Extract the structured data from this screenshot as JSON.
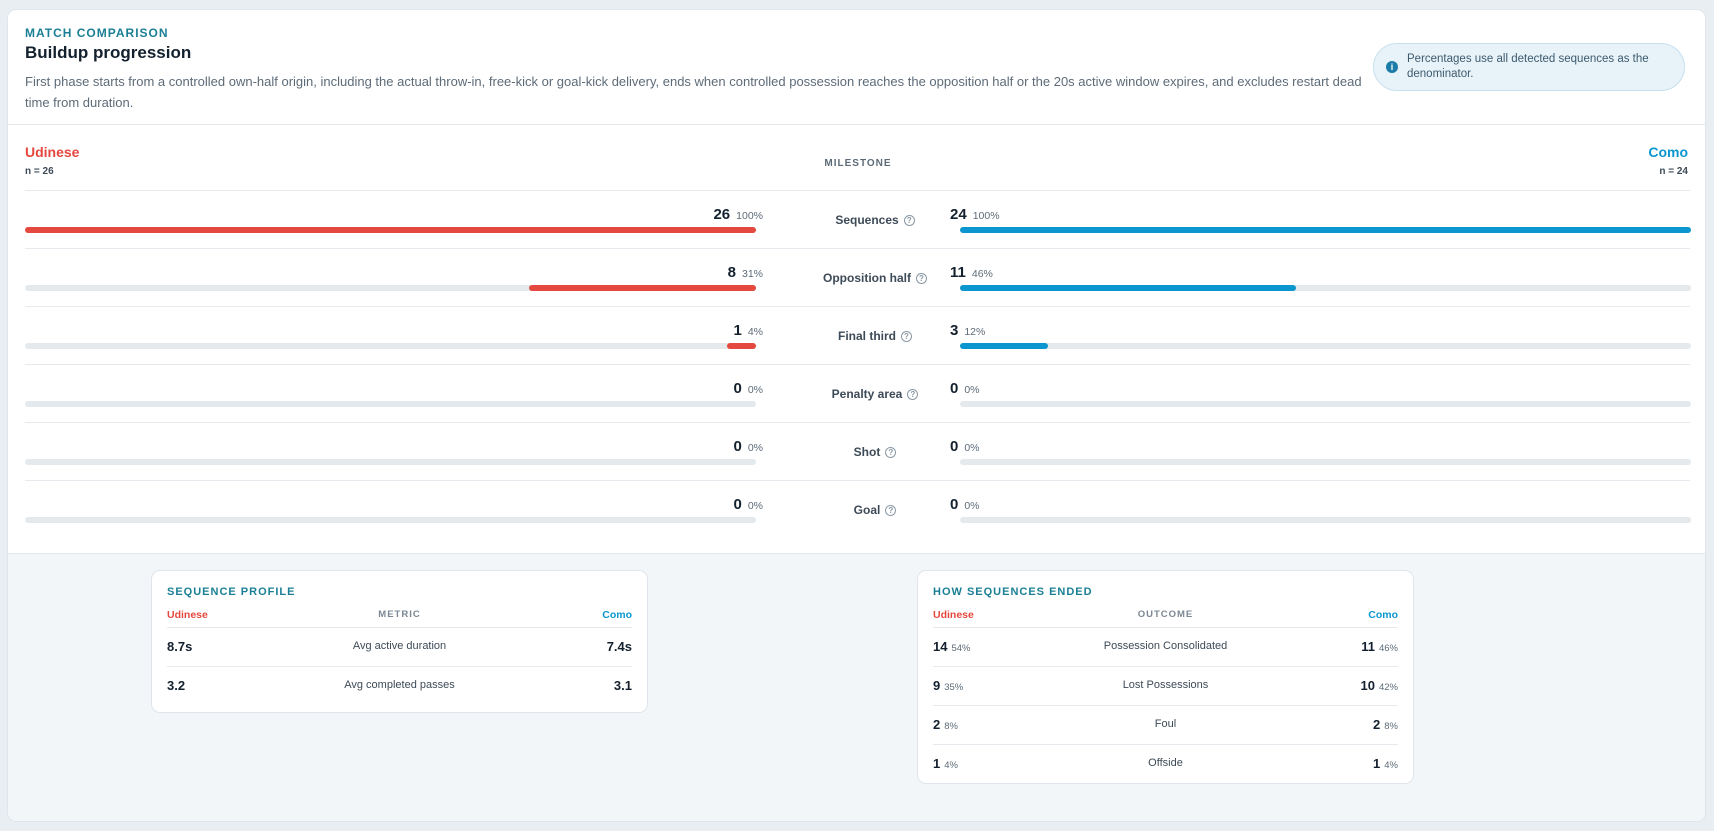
{
  "header": {
    "eyebrow": "MATCH COMPARISON",
    "title": "Buildup progression",
    "description": "First phase starts from a controlled own-half origin, including the actual throw-in, free-kick or goal-kick delivery, ends when controlled possession reaches the opposition half or the 20s active window expires, and excludes restart dead time from duration.",
    "info_icon": "i",
    "info_text": "Percentages use all detected sequences as the denominator."
  },
  "teams": {
    "left": {
      "name": "Udinese",
      "n": "n = 26",
      "color": "#e4483e"
    },
    "right": {
      "name": "Como",
      "n": "n = 24",
      "color": "#0c96cf"
    }
  },
  "milestone_header": "MILESTONE",
  "milestones": [
    {
      "label": "Sequences",
      "help": "?",
      "left_value": "26",
      "left_pct": "100%",
      "left_fill": 1.0,
      "right_value": "24",
      "right_pct": "100%",
      "right_fill": 1.0
    },
    {
      "label": "Opposition half",
      "help": "?",
      "left_value": "8",
      "left_pct": "31%",
      "left_fill": 0.31,
      "right_value": "11",
      "right_pct": "46%",
      "right_fill": 0.46
    },
    {
      "label": "Final third",
      "help": "?",
      "left_value": "1",
      "left_pct": "4%",
      "left_fill": 0.04,
      "right_value": "3",
      "right_pct": "12%",
      "right_fill": 0.12
    },
    {
      "label": "Penalty area",
      "help": "?",
      "left_value": "0",
      "left_pct": "0%",
      "left_fill": 0,
      "right_value": "0",
      "right_pct": "0%",
      "right_fill": 0
    },
    {
      "label": "Shot",
      "help": "?",
      "left_value": "0",
      "left_pct": "0%",
      "left_fill": 0,
      "right_value": "0",
      "right_pct": "0%",
      "right_fill": 0
    },
    {
      "label": "Goal",
      "help": "?",
      "left_value": "0",
      "left_pct": "0%",
      "left_fill": 0,
      "right_value": "0",
      "right_pct": "0%",
      "right_fill": 0
    }
  ],
  "sequence_profile": {
    "title": "SEQUENCE PROFILE",
    "left_head": "Udinese",
    "center_head": "METRIC",
    "right_head": "Como",
    "rows": [
      {
        "left": "8.7s",
        "metric": "Avg active duration",
        "right": "7.4s"
      },
      {
        "left": "3.2",
        "metric": "Avg completed passes",
        "right": "3.1"
      }
    ]
  },
  "how_ended": {
    "title": "HOW SEQUENCES ENDED",
    "left_head": "Udinese",
    "center_head": "OUTCOME",
    "right_head": "Como",
    "rows": [
      {
        "left": "14",
        "left_pct": "54%",
        "outcome": "Possession Consolidated",
        "right": "11",
        "right_pct": "46%"
      },
      {
        "left": "9",
        "left_pct": "35%",
        "outcome": "Lost Possessions",
        "right": "10",
        "right_pct": "42%"
      },
      {
        "left": "2",
        "left_pct": "8%",
        "outcome": "Foul",
        "right": "2",
        "right_pct": "8%"
      },
      {
        "left": "1",
        "left_pct": "4%",
        "outcome": "Offside",
        "right": "1",
        "right_pct": "4%"
      }
    ]
  }
}
